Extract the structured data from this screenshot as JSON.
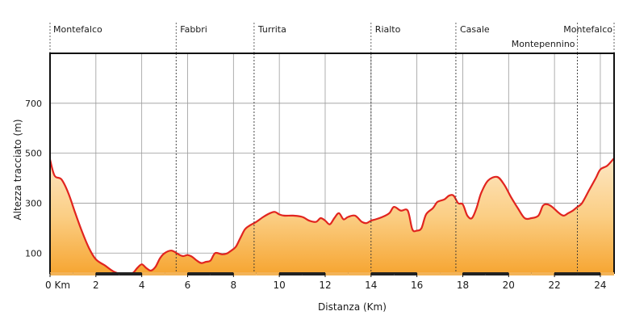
{
  "chart_data": {
    "type": "area",
    "title": "",
    "xlabel": "Distanza (Km)",
    "ylabel": "Altezza tracciato (m)",
    "xlim": [
      0,
      24.6
    ],
    "ylim": [
      20,
      900
    ],
    "x_ticks": [
      {
        "value": 0,
        "label": "0 Km"
      },
      {
        "value": 2,
        "label": "2"
      },
      {
        "value": 4,
        "label": "4"
      },
      {
        "value": 6,
        "label": "6"
      },
      {
        "value": 8,
        "label": "8"
      },
      {
        "value": 10,
        "label": "10"
      },
      {
        "value": 12,
        "label": "12"
      },
      {
        "value": 14,
        "label": "14"
      },
      {
        "value": 16,
        "label": "16"
      },
      {
        "value": 18,
        "label": "18"
      },
      {
        "value": 20,
        "label": "20"
      },
      {
        "value": 22,
        "label": "22"
      },
      {
        "value": 24,
        "label": "24"
      }
    ],
    "y_ticks": [
      100,
      300,
      500,
      700
    ],
    "grid": true,
    "waypoints": [
      {
        "name": "Montefalco",
        "km": 0
      },
      {
        "name": "Fabbri",
        "km": 5.5
      },
      {
        "name": "Turrita",
        "km": 8.9
      },
      {
        "name": "Rialto",
        "km": 14.0
      },
      {
        "name": "Casale",
        "km": 17.7
      },
      {
        "name": "Montepennino",
        "km": 23.0
      },
      {
        "name": "Montefalco",
        "km": 24.6
      }
    ],
    "x": [
      0,
      0.2,
      0.5,
      0.8,
      1.1,
      1.4,
      1.7,
      2.0,
      2.4,
      2.8,
      3.2,
      3.6,
      3.8,
      4.0,
      4.2,
      4.4,
      4.6,
      4.8,
      5.0,
      5.3,
      5.6,
      5.8,
      6.0,
      6.2,
      6.4,
      6.6,
      6.8,
      7.0,
      7.2,
      7.5,
      7.7,
      7.9,
      8.1,
      8.3,
      8.5,
      8.7,
      9.0,
      9.3,
      9.6,
      9.8,
      10.0,
      10.2,
      10.6,
      11.0,
      11.3,
      11.6,
      11.8,
      12.0,
      12.2,
      12.4,
      12.6,
      12.8,
      13.0,
      13.3,
      13.6,
      13.8,
      14.0,
      14.2,
      14.5,
      14.8,
      15.0,
      15.3,
      15.6,
      15.8,
      16.0,
      16.2,
      16.4,
      16.7,
      16.9,
      17.2,
      17.4,
      17.6,
      17.8,
      18.0,
      18.2,
      18.4,
      18.6,
      18.8,
      19.1,
      19.5,
      19.8,
      20.1,
      20.4,
      20.7,
      21.0,
      21.3,
      21.5,
      21.7,
      21.9,
      22.2,
      22.4,
      22.6,
      22.8,
      23.0,
      23.2,
      23.5,
      23.8,
      24.0,
      24.3,
      24.6
    ],
    "y": [
      475,
      410,
      395,
      340,
      260,
      185,
      120,
      75,
      50,
      25,
      15,
      20,
      40,
      55,
      40,
      30,
      45,
      80,
      100,
      110,
      95,
      88,
      92,
      85,
      70,
      60,
      65,
      70,
      100,
      95,
      98,
      110,
      125,
      160,
      195,
      210,
      225,
      245,
      260,
      265,
      255,
      250,
      250,
      245,
      230,
      225,
      240,
      230,
      215,
      240,
      260,
      235,
      245,
      250,
      225,
      220,
      230,
      235,
      245,
      260,
      285,
      270,
      270,
      195,
      190,
      200,
      255,
      280,
      305,
      315,
      330,
      330,
      300,
      295,
      250,
      240,
      280,
      340,
      390,
      405,
      375,
      325,
      280,
      240,
      240,
      250,
      290,
      295,
      285,
      260,
      250,
      260,
      270,
      285,
      300,
      350,
      400,
      435,
      450,
      480
    ]
  }
}
